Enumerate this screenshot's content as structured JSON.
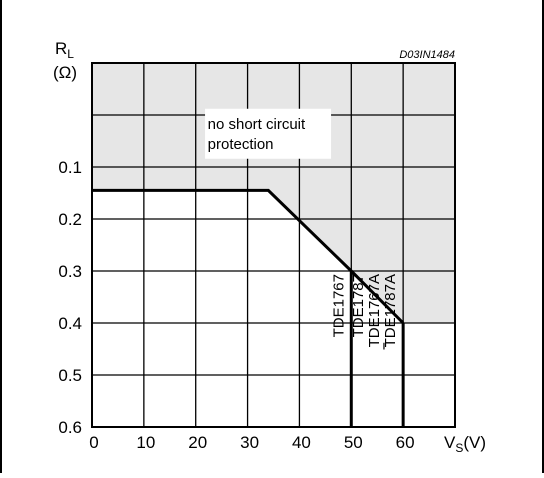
{
  "chart_data": {
    "type": "line",
    "figure_code": "D03IN1484",
    "ylabel_main": "R",
    "ylabel_sub": "L",
    "ylabel_unit": "(Ω)",
    "xlabel_main": "V",
    "xlabel_sub": "S",
    "xlabel_unit": "(V)",
    "xlim": [
      0,
      70
    ],
    "x_ticks": [
      0,
      10,
      20,
      30,
      40,
      50,
      60
    ],
    "ylim": [
      0.6,
      -0.1
    ],
    "y_ticks": [
      0.1,
      0.2,
      0.3,
      0.4,
      0.5,
      0.6
    ],
    "grid": true,
    "region_label": "no short circuit\nprotection",
    "region_color": "#e6e6e6",
    "boundary": {
      "x": [
        0,
        34,
        50,
        60
      ],
      "y": [
        0.145,
        0.145,
        0.3,
        0.4
      ]
    },
    "device_limits": [
      {
        "x": 50,
        "y": 0.3,
        "labels": [
          "TDE1767"
        ]
      },
      {
        "x": 60,
        "y": 0.4,
        "labels": [
          "TDE1787",
          "TDE1767A",
          "TDE1787A"
        ]
      }
    ]
  }
}
